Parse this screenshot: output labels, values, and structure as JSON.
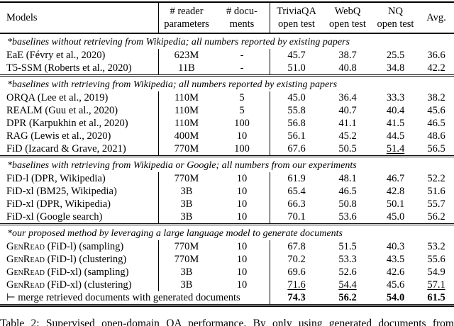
{
  "header": {
    "models_label": "Models",
    "columns": [
      {
        "line1": "# reader",
        "line2": "parameters"
      },
      {
        "line1": "# docu-",
        "line2": "ments"
      },
      {
        "line1": "TriviaQA",
        "line2": "open test"
      },
      {
        "line1": "WebQ",
        "line2": "open test"
      },
      {
        "line1": "NQ",
        "line2": "open test"
      },
      {
        "line1": "Avg.",
        "line2": ""
      }
    ]
  },
  "sections": [
    {
      "header": "*baselines without retrieving from Wikipedia; all numbers reported by existing papers",
      "rows": [
        {
          "model": "EaE (Févry et al., 2020)",
          "cells": [
            "623M",
            "-",
            "45.7",
            "38.7",
            "25.5",
            "36.6"
          ]
        },
        {
          "model": "T5-SSM (Roberts et al., 2020)",
          "cells": [
            "11B",
            "-",
            "51.0",
            "40.8",
            "34.8",
            "42.2"
          ]
        }
      ]
    },
    {
      "header": "*baselines with retrieving from Wikipedia; all numbers reported by existing papers",
      "rows": [
        {
          "model": "ORQA (Lee et al., 2019)",
          "cells": [
            "110M",
            "5",
            "45.0",
            "36.4",
            "33.3",
            "38.2"
          ]
        },
        {
          "model": "REALM (Guu et al., 2020)",
          "cells": [
            "110M",
            "5",
            "55.8",
            "40.7",
            "40.4",
            "45.6"
          ]
        },
        {
          "model": "DPR (Karpukhin et al., 2020)",
          "cells": [
            "110M",
            "100",
            "56.8",
            "41.1",
            "41.5",
            "46.5"
          ]
        },
        {
          "model": "RAG (Lewis et al., 2020)",
          "cells": [
            "400M",
            "10",
            "56.1",
            "45.2",
            "44.5",
            "48.6"
          ]
        },
        {
          "model": "FiD (Izacard & Grave, 2021)",
          "cells": [
            "770M",
            "100",
            "67.6",
            "50.5",
            {
              "t": "51.4",
              "u": true
            },
            "56.5"
          ]
        }
      ]
    },
    {
      "header": "*baselines with retrieving from Wikipedia or Google; all numbers from our experiments",
      "rows": [
        {
          "model": "FiD-l (DPR, Wikipedia)",
          "cells": [
            "770M",
            "10",
            "61.9",
            "48.1",
            "46.7",
            "52.2"
          ]
        },
        {
          "model": "FiD-xl (BM25, Wikipedia)",
          "cells": [
            "3B",
            "10",
            "65.4",
            "46.5",
            "42.8",
            "51.6"
          ]
        },
        {
          "model": "FiD-xl (DPR, Wikipedia)",
          "cells": [
            "3B",
            "10",
            "66.3",
            "50.8",
            "50.1",
            "55.7"
          ]
        },
        {
          "model": "FiD-xl (Google search)",
          "cells": [
            "3B",
            "10",
            "70.1",
            "53.6",
            "45.0",
            "56.2"
          ]
        }
      ]
    },
    {
      "header": "*our proposed method by leveraging a large language model to generate documents",
      "rows": [
        {
          "model_sc": "GenRead",
          "model": " (FiD-l) (sampling)",
          "cells": [
            "770M",
            "10",
            "67.8",
            "51.5",
            "40.3",
            "53.2"
          ]
        },
        {
          "model_sc": "GenRead",
          "model": " (FiD-l) (clustering)",
          "cells": [
            "770M",
            "10",
            "70.2",
            "53.3",
            "43.5",
            "55.6"
          ]
        },
        {
          "model_sc": "GenRead",
          "model": " (FiD-xl) (sampling)",
          "cells": [
            "3B",
            "10",
            "69.6",
            "52.6",
            "42.6",
            "54.9"
          ]
        },
        {
          "model_sc": "GenRead",
          "model": " (FiD-xl) (clustering)",
          "cells": [
            "3B",
            "10",
            {
              "t": "71.6",
              "u": true
            },
            {
              "t": "54.4",
              "u": true
            },
            "45.6",
            {
              "t": "57.1",
              "u": true
            }
          ]
        },
        {
          "merge": true,
          "model": "⊢ merge retrieved documents with generated documents",
          "cells": [
            {
              "t": "74.3",
              "b": true
            },
            {
              "t": "56.2",
              "b": true
            },
            {
              "t": "54.0",
              "b": true
            },
            {
              "t": "61.5",
              "b": true
            }
          ]
        }
      ]
    }
  ],
  "caption": "Table 2: Supervised open-domain QA performance.  By only using generated documents from"
}
